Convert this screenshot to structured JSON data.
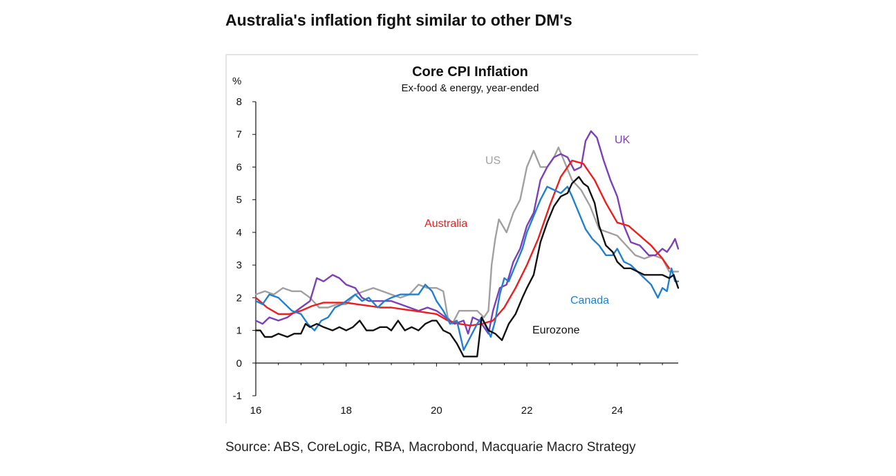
{
  "page": {
    "headline": "Australia's inflation fight similar to other DM's",
    "source": "Source: ABS, CoreLogic, RBA, Macrobond, Macquarie Macro Strategy"
  },
  "chart_data": {
    "type": "line",
    "title": "Core CPI Inflation",
    "subtitle": "Ex-food & energy, year-ended",
    "ylabel": "%",
    "xlabel": "",
    "xlim": [
      2016,
      2025.35
    ],
    "ylim": [
      -1,
      8
    ],
    "yticks": [
      -1,
      0,
      1,
      2,
      3,
      4,
      5,
      6,
      7,
      8
    ],
    "xticks": [
      2016,
      2018,
      2020,
      2022,
      2024
    ],
    "xtick_labels": [
      "16",
      "18",
      "20",
      "22",
      "24"
    ],
    "series": [
      {
        "name": "US",
        "color": "#a0a0a0",
        "points": [
          [
            2016.0,
            2.1
          ],
          [
            2016.2,
            2.2
          ],
          [
            2016.4,
            2.1
          ],
          [
            2016.6,
            2.3
          ],
          [
            2016.8,
            2.2
          ],
          [
            2017.0,
            2.2
          ],
          [
            2017.2,
            2.0
          ],
          [
            2017.4,
            1.7
          ],
          [
            2017.6,
            1.7
          ],
          [
            2017.8,
            1.8
          ],
          [
            2018.0,
            1.8
          ],
          [
            2018.2,
            2.1
          ],
          [
            2018.4,
            2.2
          ],
          [
            2018.6,
            2.3
          ],
          [
            2018.8,
            2.2
          ],
          [
            2019.0,
            2.1
          ],
          [
            2019.2,
            2.0
          ],
          [
            2019.4,
            2.1
          ],
          [
            2019.6,
            2.4
          ],
          [
            2019.8,
            2.3
          ],
          [
            2020.0,
            2.3
          ],
          [
            2020.15,
            2.2
          ],
          [
            2020.25,
            1.4
          ],
          [
            2020.35,
            1.2
          ],
          [
            2020.5,
            1.6
          ],
          [
            2020.7,
            1.6
          ],
          [
            2020.9,
            1.6
          ],
          [
            2021.05,
            1.4
          ],
          [
            2021.15,
            1.6
          ],
          [
            2021.22,
            3.0
          ],
          [
            2021.3,
            3.8
          ],
          [
            2021.38,
            4.4
          ],
          [
            2021.55,
            4.0
          ],
          [
            2021.7,
            4.6
          ],
          [
            2021.85,
            5.0
          ],
          [
            2022.0,
            6.0
          ],
          [
            2022.15,
            6.5
          ],
          [
            2022.3,
            6.0
          ],
          [
            2022.45,
            6.0
          ],
          [
            2022.6,
            6.3
          ],
          [
            2022.7,
            6.6
          ],
          [
            2022.85,
            6.1
          ],
          [
            2023.0,
            5.6
          ],
          [
            2023.2,
            5.3
          ],
          [
            2023.4,
            4.8
          ],
          [
            2023.6,
            4.1
          ],
          [
            2023.8,
            4.0
          ],
          [
            2024.0,
            3.9
          ],
          [
            2024.2,
            3.6
          ],
          [
            2024.4,
            3.3
          ],
          [
            2024.6,
            3.2
          ],
          [
            2024.8,
            3.3
          ],
          [
            2025.0,
            3.2
          ],
          [
            2025.15,
            2.8
          ],
          [
            2025.35,
            2.8
          ]
        ]
      },
      {
        "name": "UK",
        "color": "#7b3fb8",
        "points": [
          [
            2016.0,
            1.3
          ],
          [
            2016.15,
            1.2
          ],
          [
            2016.3,
            1.4
          ],
          [
            2016.5,
            1.3
          ],
          [
            2016.7,
            1.4
          ],
          [
            2016.9,
            1.6
          ],
          [
            2017.0,
            1.7
          ],
          [
            2017.2,
            1.9
          ],
          [
            2017.35,
            2.6
          ],
          [
            2017.5,
            2.5
          ],
          [
            2017.7,
            2.7
          ],
          [
            2017.85,
            2.6
          ],
          [
            2018.0,
            2.4
          ],
          [
            2018.2,
            2.3
          ],
          [
            2018.35,
            2.0
          ],
          [
            2018.5,
            1.9
          ],
          [
            2018.7,
            1.9
          ],
          [
            2018.85,
            1.9
          ],
          [
            2019.0,
            1.9
          ],
          [
            2019.2,
            1.8
          ],
          [
            2019.4,
            1.7
          ],
          [
            2019.6,
            1.6
          ],
          [
            2019.8,
            1.7
          ],
          [
            2020.0,
            1.6
          ],
          [
            2020.2,
            1.4
          ],
          [
            2020.4,
            1.2
          ],
          [
            2020.6,
            1.3
          ],
          [
            2020.7,
            0.9
          ],
          [
            2020.8,
            1.4
          ],
          [
            2020.95,
            1.3
          ],
          [
            2021.05,
            1.1
          ],
          [
            2021.15,
            0.9
          ],
          [
            2021.25,
            1.6
          ],
          [
            2021.4,
            2.3
          ],
          [
            2021.55,
            2.4
          ],
          [
            2021.7,
            3.1
          ],
          [
            2021.85,
            3.5
          ],
          [
            2022.0,
            4.2
          ],
          [
            2022.15,
            4.6
          ],
          [
            2022.3,
            5.6
          ],
          [
            2022.45,
            6.0
          ],
          [
            2022.6,
            6.3
          ],
          [
            2022.75,
            6.4
          ],
          [
            2022.9,
            6.3
          ],
          [
            2023.05,
            5.9
          ],
          [
            2023.2,
            6.0
          ],
          [
            2023.3,
            6.8
          ],
          [
            2023.42,
            7.1
          ],
          [
            2023.55,
            6.9
          ],
          [
            2023.7,
            6.2
          ],
          [
            2023.85,
            5.6
          ],
          [
            2024.0,
            5.1
          ],
          [
            2024.15,
            4.2
          ],
          [
            2024.3,
            3.7
          ],
          [
            2024.5,
            3.6
          ],
          [
            2024.7,
            3.3
          ],
          [
            2024.85,
            3.3
          ],
          [
            2025.0,
            3.5
          ],
          [
            2025.1,
            3.4
          ],
          [
            2025.2,
            3.6
          ],
          [
            2025.28,
            3.8
          ],
          [
            2025.35,
            3.5
          ]
        ]
      },
      {
        "name": "Australia",
        "color": "#ee1c1c",
        "points": [
          [
            2016.0,
            2.0
          ],
          [
            2016.25,
            1.7
          ],
          [
            2016.5,
            1.5
          ],
          [
            2016.75,
            1.5
          ],
          [
            2017.0,
            1.6
          ],
          [
            2017.25,
            1.75
          ],
          [
            2017.5,
            1.85
          ],
          [
            2017.75,
            1.85
          ],
          [
            2018.0,
            1.85
          ],
          [
            2018.25,
            1.8
          ],
          [
            2018.5,
            1.75
          ],
          [
            2018.75,
            1.7
          ],
          [
            2019.0,
            1.7
          ],
          [
            2019.25,
            1.65
          ],
          [
            2019.5,
            1.6
          ],
          [
            2019.75,
            1.55
          ],
          [
            2020.0,
            1.5
          ],
          [
            2020.25,
            1.3
          ],
          [
            2020.5,
            1.2
          ],
          [
            2020.75,
            1.15
          ],
          [
            2021.0,
            1.2
          ],
          [
            2021.25,
            1.3
          ],
          [
            2021.5,
            1.7
          ],
          [
            2021.75,
            2.3
          ],
          [
            2022.0,
            3.0
          ],
          [
            2022.25,
            3.8
          ],
          [
            2022.5,
            4.8
          ],
          [
            2022.75,
            5.7
          ],
          [
            2023.0,
            6.2
          ],
          [
            2023.25,
            6.1
          ],
          [
            2023.5,
            5.6
          ],
          [
            2023.75,
            4.9
          ],
          [
            2024.0,
            4.3
          ],
          [
            2024.25,
            4.2
          ],
          [
            2024.5,
            3.9
          ],
          [
            2024.75,
            3.6
          ],
          [
            2025.0,
            3.2
          ],
          [
            2025.15,
            2.9
          ]
        ]
      },
      {
        "name": "Canada",
        "color": "#1f7fd0",
        "points": [
          [
            2016.0,
            1.9
          ],
          [
            2016.15,
            1.8
          ],
          [
            2016.3,
            2.1
          ],
          [
            2016.5,
            2.0
          ],
          [
            2016.65,
            1.8
          ],
          [
            2016.8,
            1.6
          ],
          [
            2017.0,
            1.5
          ],
          [
            2017.15,
            1.2
          ],
          [
            2017.3,
            1.0
          ],
          [
            2017.45,
            1.3
          ],
          [
            2017.6,
            1.4
          ],
          [
            2017.75,
            1.7
          ],
          [
            2017.9,
            1.8
          ],
          [
            2018.0,
            1.9
          ],
          [
            2018.2,
            2.1
          ],
          [
            2018.35,
            1.9
          ],
          [
            2018.5,
            2.0
          ],
          [
            2018.7,
            1.7
          ],
          [
            2018.85,
            1.9
          ],
          [
            2019.0,
            2.0
          ],
          [
            2019.2,
            2.1
          ],
          [
            2019.4,
            2.1
          ],
          [
            2019.6,
            2.1
          ],
          [
            2019.75,
            2.4
          ],
          [
            2019.9,
            2.2
          ],
          [
            2020.0,
            1.9
          ],
          [
            2020.15,
            1.6
          ],
          [
            2020.3,
            1.2
          ],
          [
            2020.45,
            1.3
          ],
          [
            2020.6,
            0.4
          ],
          [
            2020.75,
            0.8
          ],
          [
            2020.9,
            1.2
          ],
          [
            2021.0,
            1.4
          ],
          [
            2021.1,
            1.1
          ],
          [
            2021.2,
            0.8
          ],
          [
            2021.3,
            1.3
          ],
          [
            2021.4,
            2.1
          ],
          [
            2021.5,
            2.6
          ],
          [
            2021.6,
            2.5
          ],
          [
            2021.75,
            3.0
          ],
          [
            2021.9,
            3.5
          ],
          [
            2022.0,
            4.0
          ],
          [
            2022.15,
            4.5
          ],
          [
            2022.3,
            5.0
          ],
          [
            2022.45,
            5.4
          ],
          [
            2022.6,
            5.3
          ],
          [
            2022.75,
            5.2
          ],
          [
            2022.9,
            5.4
          ],
          [
            2023.0,
            5.1
          ],
          [
            2023.15,
            4.6
          ],
          [
            2023.3,
            4.1
          ],
          [
            2023.45,
            3.8
          ],
          [
            2023.6,
            3.6
          ],
          [
            2023.75,
            3.3
          ],
          [
            2023.9,
            3.3
          ],
          [
            2024.0,
            3.5
          ],
          [
            2024.15,
            3.1
          ],
          [
            2024.3,
            3.0
          ],
          [
            2024.45,
            2.8
          ],
          [
            2024.6,
            2.6
          ],
          [
            2024.75,
            2.4
          ],
          [
            2024.9,
            2.0
          ],
          [
            2025.0,
            2.3
          ],
          [
            2025.1,
            2.2
          ],
          [
            2025.2,
            2.9
          ],
          [
            2025.28,
            2.5
          ],
          [
            2025.35,
            2.5
          ]
        ]
      },
      {
        "name": "Eurozone",
        "color": "#111111",
        "points": [
          [
            2016.0,
            1.0
          ],
          [
            2016.1,
            1.0
          ],
          [
            2016.2,
            0.8
          ],
          [
            2016.35,
            0.8
          ],
          [
            2016.5,
            0.9
          ],
          [
            2016.7,
            0.8
          ],
          [
            2016.85,
            0.9
          ],
          [
            2017.0,
            0.9
          ],
          [
            2017.1,
            1.2
          ],
          [
            2017.2,
            1.1
          ],
          [
            2017.35,
            1.2
          ],
          [
            2017.5,
            1.1
          ],
          [
            2017.7,
            1.0
          ],
          [
            2017.85,
            1.1
          ],
          [
            2018.0,
            1.0
          ],
          [
            2018.15,
            1.1
          ],
          [
            2018.3,
            1.3
          ],
          [
            2018.45,
            1.0
          ],
          [
            2018.6,
            1.0
          ],
          [
            2018.75,
            1.1
          ],
          [
            2018.9,
            1.1
          ],
          [
            2019.0,
            1.0
          ],
          [
            2019.15,
            1.3
          ],
          [
            2019.3,
            1.0
          ],
          [
            2019.45,
            1.1
          ],
          [
            2019.6,
            1.0
          ],
          [
            2019.75,
            1.2
          ],
          [
            2019.9,
            1.3
          ],
          [
            2020.0,
            1.3
          ],
          [
            2020.15,
            1.0
          ],
          [
            2020.3,
            0.9
          ],
          [
            2020.45,
            0.6
          ],
          [
            2020.6,
            0.2
          ],
          [
            2020.75,
            0.2
          ],
          [
            2020.9,
            0.2
          ],
          [
            2021.0,
            1.4
          ],
          [
            2021.15,
            1.0
          ],
          [
            2021.3,
            0.9
          ],
          [
            2021.45,
            0.7
          ],
          [
            2021.6,
            1.2
          ],
          [
            2021.75,
            1.5
          ],
          [
            2021.9,
            2.0
          ],
          [
            2022.0,
            2.3
          ],
          [
            2022.15,
            2.7
          ],
          [
            2022.3,
            3.7
          ],
          [
            2022.45,
            4.3
          ],
          [
            2022.6,
            4.8
          ],
          [
            2022.75,
            5.1
          ],
          [
            2022.9,
            5.2
          ],
          [
            2023.0,
            5.5
          ],
          [
            2023.15,
            5.7
          ],
          [
            2023.25,
            5.5
          ],
          [
            2023.35,
            5.4
          ],
          [
            2023.5,
            4.9
          ],
          [
            2023.6,
            4.2
          ],
          [
            2023.75,
            3.6
          ],
          [
            2023.9,
            3.4
          ],
          [
            2024.0,
            3.1
          ],
          [
            2024.15,
            2.9
          ],
          [
            2024.3,
            2.9
          ],
          [
            2024.45,
            2.8
          ],
          [
            2024.6,
            2.7
          ],
          [
            2024.75,
            2.7
          ],
          [
            2024.9,
            2.7
          ],
          [
            2025.0,
            2.7
          ],
          [
            2025.15,
            2.6
          ],
          [
            2025.25,
            2.7
          ],
          [
            2025.35,
            2.3
          ]
        ]
      }
    ],
    "annotations": [
      {
        "text": "US",
        "series": "US"
      },
      {
        "text": "UK",
        "series": "UK"
      },
      {
        "text": "Australia",
        "series": "Australia"
      },
      {
        "text": "Canada",
        "series": "Canada"
      },
      {
        "text": "Eurozone",
        "series": "Eurozone"
      }
    ]
  }
}
